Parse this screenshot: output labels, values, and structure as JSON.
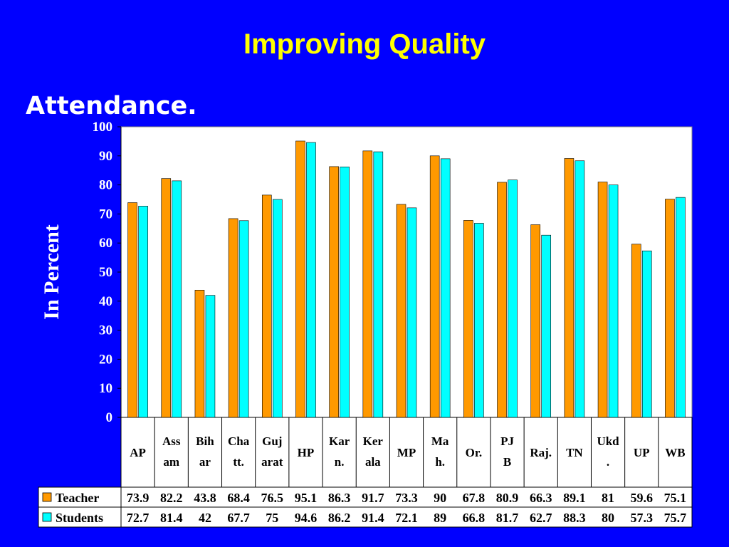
{
  "slide": {
    "title": "Improving Quality",
    "subtitle": "Attendance."
  },
  "colors": {
    "background": "#0000ff",
    "title": "#ffff00",
    "teacher": "#ff9900",
    "students": "#00ffff"
  },
  "chart_data": {
    "type": "bar",
    "ylabel": "In Percent",
    "ylim": [
      0,
      100
    ],
    "yticks": [
      0,
      10,
      20,
      30,
      40,
      50,
      60,
      70,
      80,
      90,
      100
    ],
    "grid": false,
    "legend": "data-table-left",
    "categories": [
      [
        "AP"
      ],
      [
        "Ass",
        "am"
      ],
      [
        "Bih",
        "ar"
      ],
      [
        "Cha",
        "tt."
      ],
      [
        "Guj",
        "arat"
      ],
      [
        "HP"
      ],
      [
        "Kar",
        "n."
      ],
      [
        "Ker",
        "ala"
      ],
      [
        "MP"
      ],
      [
        "Ma",
        "h."
      ],
      [
        "Or."
      ],
      [
        "PJ",
        "B"
      ],
      [
        "Raj."
      ],
      [
        "TN"
      ],
      [
        "Ukd",
        "."
      ],
      [
        "UP"
      ],
      [
        "WB"
      ]
    ],
    "series": [
      {
        "name": "Teacher",
        "values": [
          73.9,
          82.2,
          43.8,
          68.4,
          76.5,
          95.1,
          86.3,
          91.7,
          73.3,
          90,
          67.8,
          80.9,
          66.3,
          89.1,
          81,
          59.6,
          75.1
        ]
      },
      {
        "name": "Students",
        "values": [
          72.7,
          81.4,
          42,
          67.7,
          75,
          94.6,
          86.2,
          91.4,
          72.1,
          89,
          66.8,
          81.7,
          62.7,
          88.3,
          80,
          57.3,
          75.7
        ]
      }
    ]
  }
}
